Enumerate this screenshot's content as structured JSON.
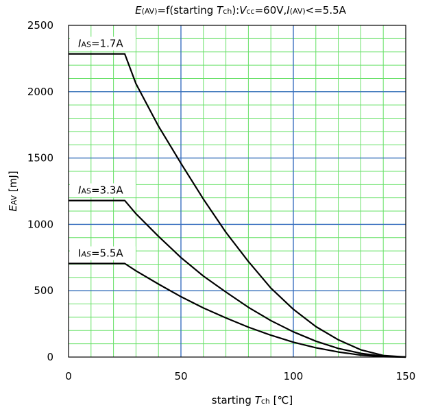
{
  "chart_data": {
    "type": "line",
    "title": {
      "e": "E",
      "av": "(AV)",
      "mid": "=f(starting ",
      "t": "T",
      "ch": "ch",
      "close": "):",
      "v": "V",
      "cc": "cc",
      "eq60": "=60V,",
      "i": "I",
      "av2": "(AV)",
      "tail": "<=5.5A"
    },
    "xlabel": {
      "pre": "starting ",
      "t": "T",
      "ch": "ch",
      "unit": "  [℃]"
    },
    "ylabel": {
      "e": "E",
      "av": "AV",
      "unit": "  [mJ]"
    },
    "xlim": [
      0,
      150
    ],
    "ylim": [
      0,
      2500
    ],
    "x_ticks": [
      "0",
      "50",
      "100",
      "150"
    ],
    "y_ticks": [
      "0",
      "500",
      "1000",
      "1500",
      "2000",
      "2500"
    ],
    "grid": {
      "minor": true,
      "major": true
    },
    "colors": {
      "minor_grid": "#66e066",
      "major_grid": "#3a6fc0",
      "line": "#000000",
      "axis": "#000000"
    },
    "series": [
      {
        "name": "IAS=1.7A",
        "label": {
          "i": "I",
          "as": "AS",
          "val": "=1.7A"
        },
        "x": [
          0,
          25,
          30,
          40,
          50,
          60,
          70,
          80,
          90,
          100,
          110,
          120,
          130,
          140,
          150
        ],
        "y": [
          2285,
          2285,
          2060,
          1740,
          1460,
          1190,
          940,
          720,
          520,
          360,
          230,
          130,
          55,
          12,
          0
        ]
      },
      {
        "name": "IAS=3.3A",
        "label": {
          "i": "I",
          "as": "AS",
          "val": "=3.3A"
        },
        "x": [
          0,
          25,
          30,
          40,
          50,
          60,
          70,
          80,
          90,
          100,
          110,
          120,
          130,
          140,
          150
        ],
        "y": [
          1180,
          1180,
          1080,
          910,
          750,
          610,
          490,
          375,
          275,
          190,
          120,
          65,
          28,
          6,
          0
        ]
      },
      {
        "name": "IAS=5.5A",
        "label": {
          "i": "I",
          "as": "AS",
          "val": "=5.5A"
        },
        "x": [
          0,
          25,
          30,
          40,
          50,
          60,
          70,
          80,
          90,
          100,
          110,
          120,
          130,
          140,
          150
        ],
        "y": [
          705,
          705,
          650,
          550,
          455,
          370,
          295,
          225,
          165,
          112,
          70,
          38,
          15,
          3,
          0
        ]
      }
    ]
  }
}
